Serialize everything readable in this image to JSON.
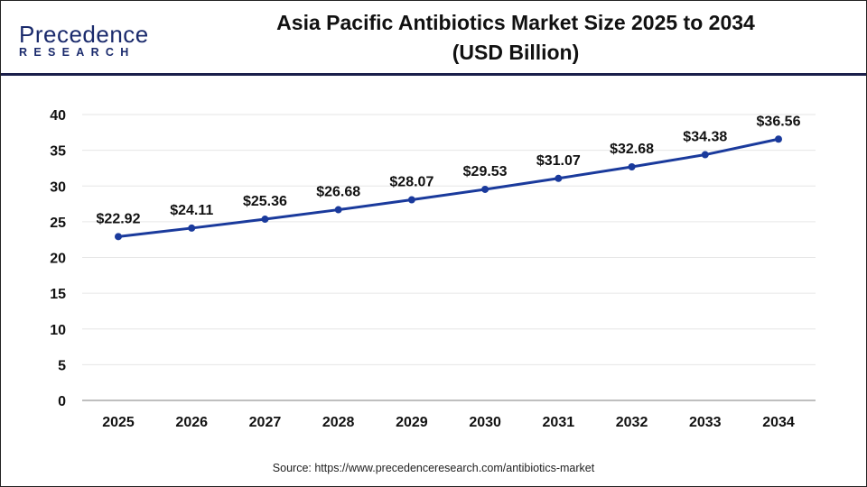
{
  "logo": {
    "line1": "Precedence",
    "line2": "RESEARCH"
  },
  "source": "Source: https://www.precedenceresearch.com/antibiotics-market",
  "chart_data": {
    "type": "line",
    "title": "Asia Pacific Antibiotics Market Size 2025 to 2034 (USD Billion)",
    "title_lines": [
      "Asia Pacific Antibiotics Market Size 2025 to 2034",
      "(USD Billion)"
    ],
    "categories": [
      "2025",
      "2026",
      "2027",
      "2028",
      "2029",
      "2030",
      "2031",
      "2032",
      "2033",
      "2034"
    ],
    "values": [
      22.92,
      24.11,
      25.36,
      26.68,
      28.07,
      29.53,
      31.07,
      32.68,
      34.38,
      36.56
    ],
    "data_labels": [
      "$22.92",
      "$24.11",
      "$25.36",
      "$26.68",
      "$28.07",
      "$29.53",
      "$31.07",
      "$32.68",
      "$34.38",
      "$36.56"
    ],
    "yticks": [
      "0",
      "5",
      "10",
      "15",
      "20",
      "25",
      "30",
      "35",
      "40"
    ],
    "ylim": [
      0,
      40
    ],
    "grid": true,
    "line_color": "#1a3a9c",
    "xlabel": "",
    "ylabel": ""
  }
}
